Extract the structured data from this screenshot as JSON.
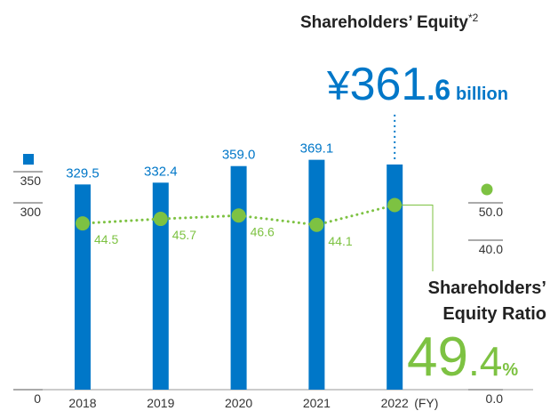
{
  "chart_data": {
    "type": "combo",
    "categories": [
      "2018",
      "2019",
      "2020",
      "2021",
      "2022"
    ],
    "x_unit": "(FY)",
    "series": [
      {
        "name": "Shareholders’ Equity",
        "type": "bar",
        "color": "#0077c8",
        "values": [
          329.5,
          332.4,
          359.0,
          369.1,
          361.6
        ],
        "value_labels": [
          "329.5",
          "332.4",
          "359.0",
          "369.1",
          null
        ]
      },
      {
        "name": "Shareholders’ Equity Ratio",
        "type": "line",
        "axis": "y2",
        "color": "#7dc242",
        "values": [
          44.5,
          45.7,
          46.6,
          44.1,
          49.4
        ],
        "value_labels": [
          "44.5",
          "45.7",
          "46.6",
          "44.1",
          null
        ]
      }
    ],
    "ylim": [
      0,
      400
    ],
    "yticks": [
      0,
      300,
      350
    ],
    "y2lim": [
      0,
      60
    ],
    "y2ticks": [
      {
        "value": 0,
        "label": "0.0"
      },
      {
        "value": 40,
        "label": "40.0"
      },
      {
        "value": 50,
        "label": "50.0"
      }
    ],
    "annotations": {
      "equity_note": "*2",
      "equity_prefix": "¥",
      "equity_integer": "361",
      "equity_decimal": ".6",
      "equity_unit": "billion",
      "ratio_integer": "49",
      "ratio_decimal": ".4",
      "ratio_unit": "%"
    }
  }
}
